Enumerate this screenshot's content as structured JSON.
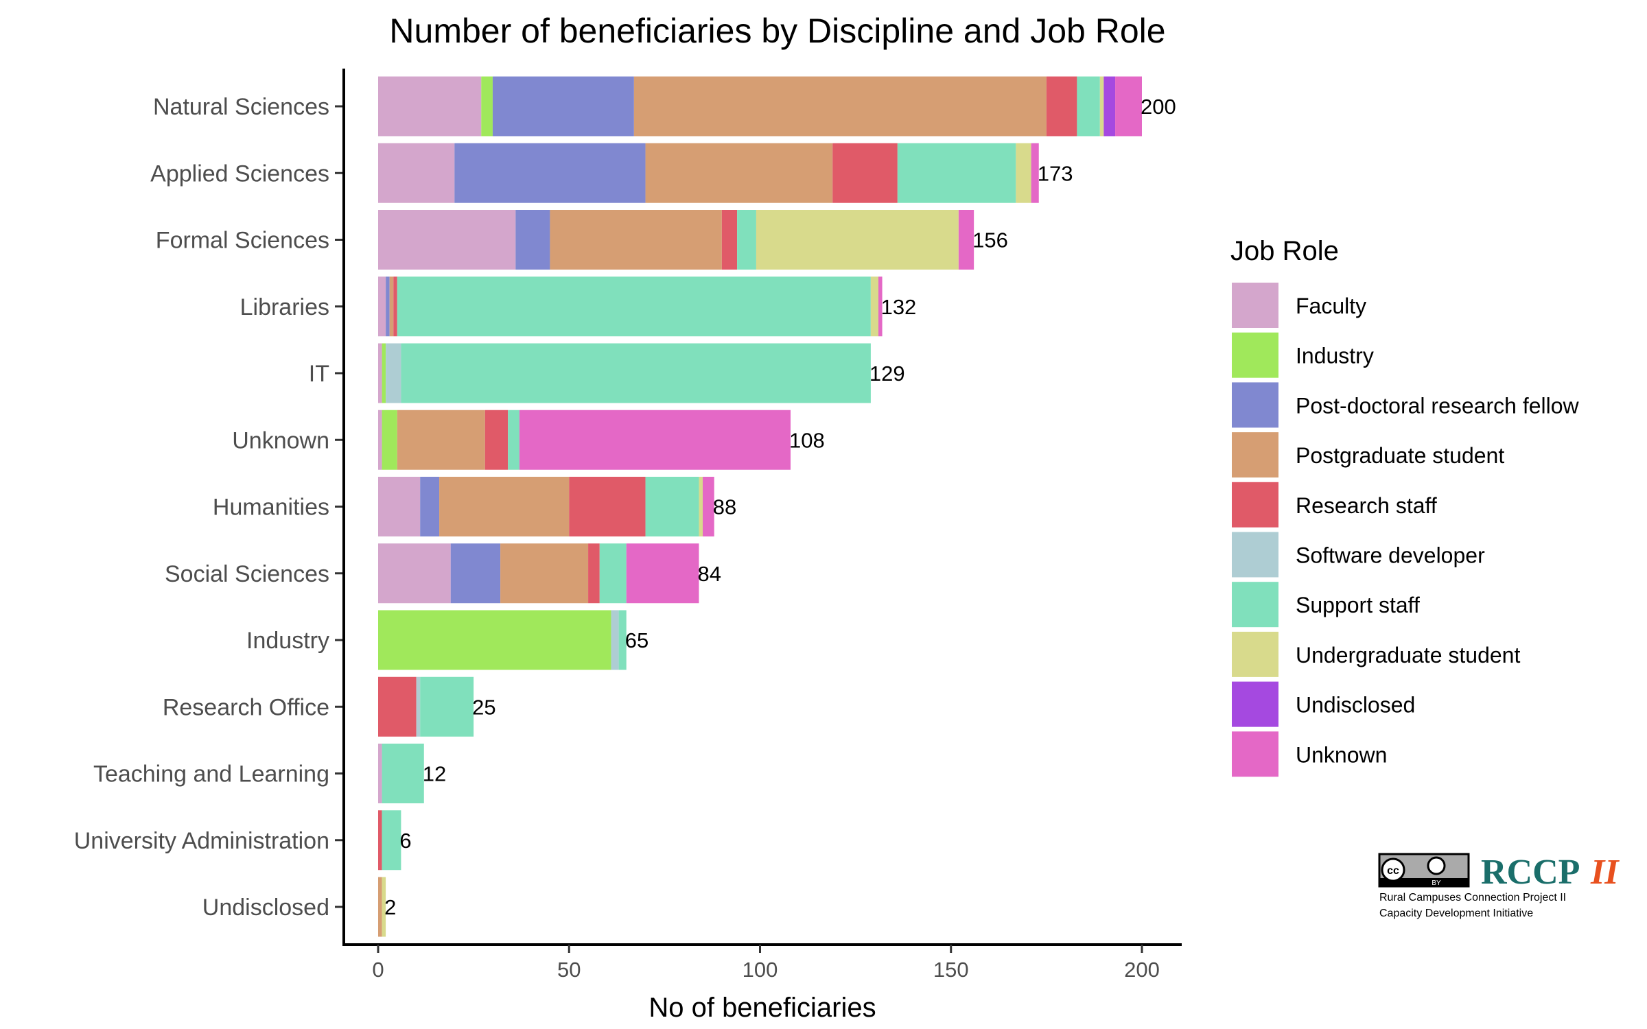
{
  "chart_data": {
    "type": "bar",
    "orientation": "horizontal",
    "stacked": true,
    "title": "Number of beneficiaries by Discipline and Job Role",
    "xlabel": "No of beneficiaries",
    "ylabel": "",
    "xlim": [
      0,
      200
    ],
    "xticks": [
      0,
      50,
      100,
      150,
      200
    ],
    "grid": false,
    "legend": {
      "title": "Job Role",
      "placement": "right"
    },
    "categories": [
      "Natural Sciences",
      "Applied Sciences",
      "Formal Sciences",
      "Libraries",
      "IT",
      "Unknown",
      "Humanities",
      "Social Sciences",
      "Industry",
      "Research Office",
      "Teaching and Learning",
      "University Administration",
      "Undisclosed"
    ],
    "totals": [
      200,
      173,
      156,
      132,
      129,
      108,
      88,
      84,
      65,
      25,
      12,
      6,
      2
    ],
    "series": [
      {
        "name": "Faculty",
        "color": "#D4A6CC",
        "values": [
          27,
          20,
          36,
          2,
          1,
          1,
          11,
          19,
          0,
          0,
          1,
          0,
          0
        ]
      },
      {
        "name": "Industry",
        "color": "#A0E85B",
        "values": [
          3,
          0,
          0,
          0,
          1,
          4,
          0,
          0,
          61,
          0,
          0,
          0,
          0
        ]
      },
      {
        "name": "Post-doctoral research fellow",
        "color": "#8088D0",
        "values": [
          37,
          50,
          9,
          1,
          0,
          0,
          5,
          13,
          0,
          0,
          0,
          0,
          0
        ]
      },
      {
        "name": "Postgraduate student",
        "color": "#D69E73",
        "values": [
          108,
          49,
          45,
          1,
          0,
          23,
          34,
          23,
          0,
          0,
          0,
          0,
          1
        ]
      },
      {
        "name": "Research staff",
        "color": "#E05A68",
        "values": [
          8,
          17,
          4,
          1,
          0,
          6,
          20,
          3,
          0,
          10,
          0,
          1,
          0
        ]
      },
      {
        "name": "Software developer",
        "color": "#AECDD3",
        "values": [
          0,
          0,
          0,
          0,
          4,
          0,
          0,
          0,
          2,
          1,
          0,
          0,
          0
        ]
      },
      {
        "name": "Support staff",
        "color": "#80E0BC",
        "values": [
          6,
          31,
          5,
          124,
          123,
          3,
          14,
          7,
          2,
          14,
          11,
          5,
          0
        ]
      },
      {
        "name": "Undergraduate student",
        "color": "#D8DA8C",
        "values": [
          1,
          4,
          53,
          2,
          0,
          0,
          1,
          0,
          0,
          0,
          0,
          0,
          1
        ]
      },
      {
        "name": "Undisclosed",
        "color": "#A549E0",
        "values": [
          3,
          0,
          0,
          0,
          0,
          0,
          0,
          0,
          0,
          0,
          0,
          0,
          0
        ]
      },
      {
        "name": "Unknown",
        "color": "#E468C6",
        "values": [
          7,
          2,
          4,
          1,
          0,
          71,
          3,
          19,
          0,
          0,
          0,
          0,
          0
        ]
      }
    ]
  },
  "logo": {
    "license": "cc BY",
    "name_main": "RCCP",
    "name_suffix": "II",
    "line1": "Rural Campuses Connection Project II",
    "line2": "Capacity Development Initiative"
  }
}
